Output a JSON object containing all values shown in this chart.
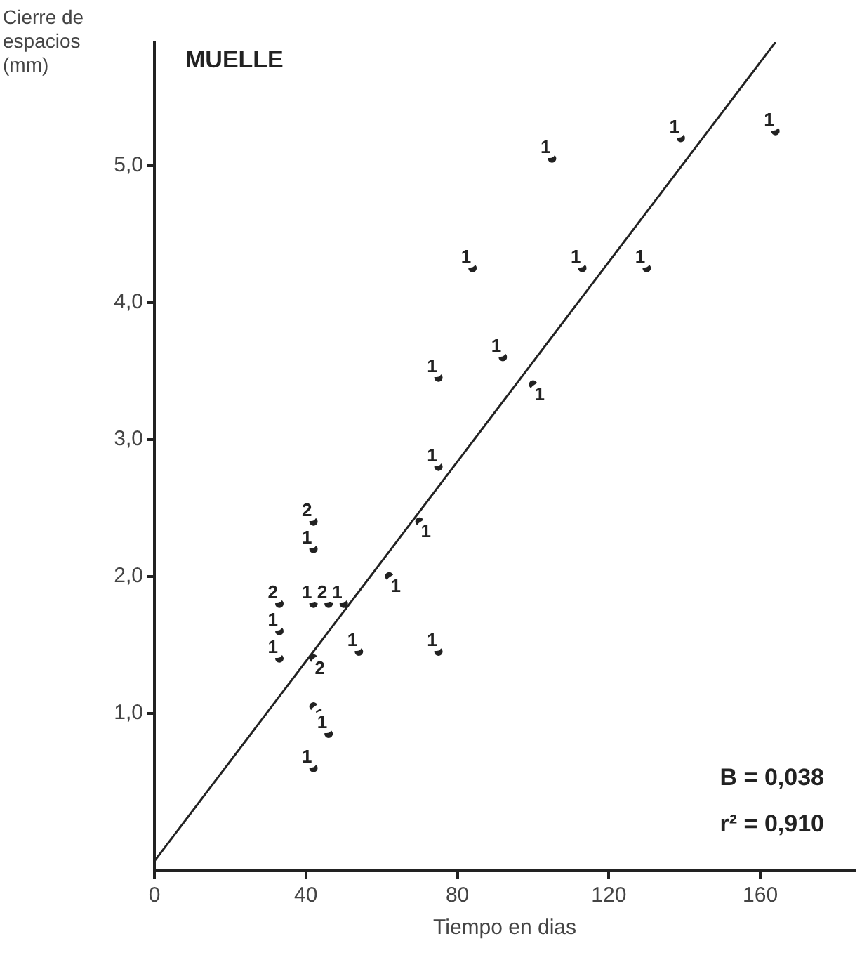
{
  "chart_data": {
    "type": "scatter",
    "title": "MUELLE",
    "xlabel": "Tiempo en dias",
    "ylabel": "Cierre de espacios (mm)",
    "xlim": [
      0,
      185
    ],
    "ylim": [
      -0.15,
      5.9
    ],
    "xticks": [
      0,
      40,
      80,
      120,
      160
    ],
    "yticks": [
      {
        "value": 1,
        "label": "1,0"
      },
      {
        "value": 2,
        "label": "2,0"
      },
      {
        "value": 3,
        "label": "3,0"
      },
      {
        "value": 4,
        "label": "4,0"
      },
      {
        "value": 5,
        "label": "5,0"
      }
    ],
    "grid": false,
    "legend": false,
    "marker": "circle",
    "series": [
      {
        "name": "1",
        "color": "#222222",
        "x": [
          105,
          139,
          164,
          84,
          113,
          130,
          92,
          75,
          100,
          75,
          70,
          62,
          42,
          33,
          33,
          42,
          50,
          54,
          75,
          42,
          46,
          42
        ],
        "values": [
          5.05,
          5.2,
          5.25,
          4.25,
          4.25,
          4.25,
          3.6,
          3.45,
          3.4,
          2.8,
          2.4,
          2.0,
          2.2,
          1.6,
          1.4,
          1.8,
          1.8,
          1.45,
          1.45,
          1.05,
          0.85,
          0.6
        ]
      },
      {
        "name": "2",
        "color": "#222222",
        "x": [
          42,
          33,
          46,
          42
        ],
        "values": [
          2.4,
          1.8,
          1.8,
          1.4
        ]
      },
      {
        "type": "line",
        "marker": "none",
        "color": "#222222",
        "x": [
          0,
          164
        ],
        "values": [
          -0.08,
          5.9
        ]
      }
    ],
    "annotations": [
      "B = 0,038",
      "r² = 0,910"
    ]
  }
}
